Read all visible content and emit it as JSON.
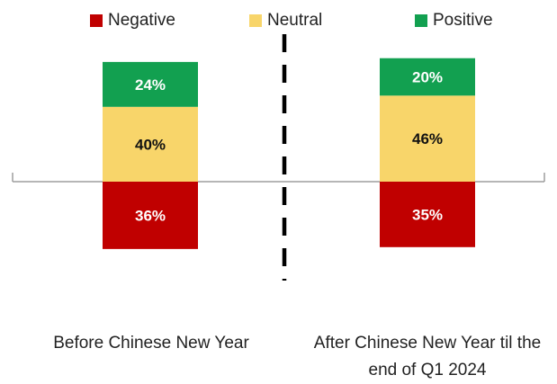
{
  "chart_data": {
    "type": "bar",
    "stacked": true,
    "diverging": true,
    "categories": [
      "Before Chinese New Year",
      "After Chinese New Year til the end of Q1 2024"
    ],
    "series": [
      {
        "name": "Negative",
        "values": [
          36,
          35
        ],
        "color": "#C00000",
        "direction": "below"
      },
      {
        "name": "Neutral",
        "values": [
          40,
          46
        ],
        "color": "#F8D56A",
        "direction": "above"
      },
      {
        "name": "Positive",
        "values": [
          24,
          20
        ],
        "color": "#12A050",
        "direction": "above"
      }
    ],
    "value_format": "{v}%",
    "legend": "top",
    "divider": "dashed vertical line between categories",
    "grid": false
  },
  "legend": {
    "items": [
      {
        "label": "Negative",
        "color": "#C00000"
      },
      {
        "label": "Neutral",
        "color": "#F8D56A"
      },
      {
        "label": "Positive",
        "color": "#12A050"
      }
    ]
  },
  "x_labels": {
    "before": "Before Chinese New Year",
    "after": "After Chinese New Year til the end of Q1 2024"
  }
}
